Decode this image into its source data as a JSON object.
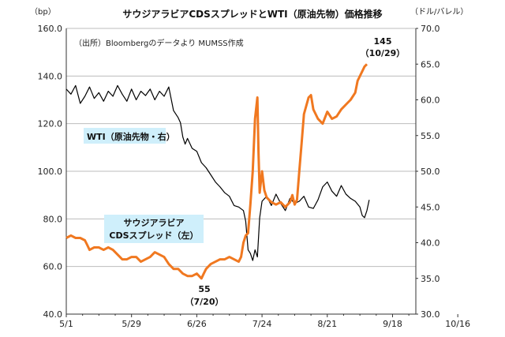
{
  "chart_data": {
    "type": "line",
    "title": "サウジアラビアCDSスプレッドとWTI（原油先物）価格推移",
    "source_note": "（出所）Bloombergのデータより MUMSS作成",
    "y_left_unit": "（bp）",
    "y_right_unit": "（ドル/バレル）",
    "y_left_ticks": [
      "40.0",
      "60.0",
      "80.0",
      "100.0",
      "120.0",
      "140.0",
      "160.0"
    ],
    "y_right_ticks": [
      "30.0",
      "35.0",
      "40.0",
      "45.0",
      "50.0",
      "55.0",
      "60.0",
      "65.0",
      "70.0"
    ],
    "x_ticks": [
      "5/1",
      "5/29",
      "6/26",
      "7/24",
      "8/21",
      "9/18",
      "10/16"
    ],
    "ylim_left": [
      40,
      160
    ],
    "ylim_right": [
      30,
      70
    ],
    "grid": true,
    "series": [
      {
        "name": "WTI（原油先物・右）",
        "axis": "right",
        "color": "#000000",
        "points": [
          [
            0,
            61.5
          ],
          [
            2,
            60.8
          ],
          [
            4,
            62.0
          ],
          [
            6,
            59.5
          ],
          [
            8,
            60.5
          ],
          [
            10,
            61.8
          ],
          [
            12,
            60.2
          ],
          [
            14,
            61.0
          ],
          [
            16,
            59.8
          ],
          [
            18,
            61.2
          ],
          [
            20,
            60.5
          ],
          [
            22,
            62.0
          ],
          [
            24,
            60.8
          ],
          [
            26,
            59.8
          ],
          [
            28,
            61.5
          ],
          [
            30,
            60.0
          ],
          [
            32,
            61.2
          ],
          [
            34,
            60.6
          ],
          [
            36,
            61.5
          ],
          [
            38,
            60.0
          ],
          [
            40,
            61.2
          ],
          [
            42,
            60.5
          ],
          [
            44,
            61.8
          ],
          [
            46,
            58.5
          ],
          [
            48,
            57.5
          ],
          [
            49,
            56.8
          ],
          [
            50,
            54.8
          ],
          [
            51,
            53.8
          ],
          [
            52,
            54.6
          ],
          [
            54,
            53.2
          ],
          [
            56,
            52.8
          ],
          [
            58,
            51.2
          ],
          [
            60,
            50.5
          ],
          [
            62,
            49.5
          ],
          [
            64,
            48.5
          ],
          [
            66,
            47.8
          ],
          [
            68,
            47.0
          ],
          [
            70,
            46.5
          ],
          [
            72,
            45.2
          ],
          [
            74,
            45.0
          ],
          [
            76,
            44.5
          ],
          [
            77,
            43.0
          ],
          [
            78,
            39.0
          ],
          [
            79,
            38.5
          ],
          [
            80,
            37.5
          ],
          [
            81,
            39.0
          ],
          [
            82,
            38.0
          ],
          [
            83,
            43.5
          ],
          [
            84,
            45.8
          ],
          [
            86,
            46.5
          ],
          [
            88,
            45.2
          ],
          [
            90,
            46.8
          ],
          [
            92,
            45.5
          ],
          [
            94,
            44.5
          ],
          [
            96,
            46.2
          ],
          [
            98,
            45.5
          ],
          [
            100,
            45.8
          ],
          [
            102,
            46.5
          ],
          [
            104,
            45.0
          ],
          [
            106,
            44.8
          ],
          [
            108,
            46.0
          ],
          [
            110,
            47.8
          ],
          [
            112,
            48.5
          ],
          [
            114,
            47.2
          ],
          [
            116,
            46.5
          ],
          [
            118,
            48.0
          ],
          [
            120,
            46.8
          ],
          [
            122,
            46.2
          ],
          [
            124,
            45.8
          ],
          [
            126,
            45.0
          ],
          [
            127,
            43.8
          ],
          [
            128,
            43.5
          ],
          [
            129,
            44.5
          ],
          [
            130,
            46.0
          ]
        ]
      },
      {
        "name": "サウジアラビアCDSスプレッド（左）",
        "axis": "left",
        "color": "#F07820",
        "points": [
          [
            0,
            72
          ],
          [
            2,
            73
          ],
          [
            4,
            72
          ],
          [
            6,
            72
          ],
          [
            8,
            71
          ],
          [
            9,
            69
          ],
          [
            10,
            67
          ],
          [
            12,
            68
          ],
          [
            14,
            68
          ],
          [
            16,
            67
          ],
          [
            18,
            68
          ],
          [
            20,
            67
          ],
          [
            22,
            65
          ],
          [
            24,
            63
          ],
          [
            26,
            63
          ],
          [
            28,
            64
          ],
          [
            30,
            64
          ],
          [
            32,
            62
          ],
          [
            34,
            63
          ],
          [
            36,
            64
          ],
          [
            38,
            66
          ],
          [
            40,
            65
          ],
          [
            42,
            64
          ],
          [
            44,
            61
          ],
          [
            46,
            59
          ],
          [
            48,
            59
          ],
          [
            50,
            57
          ],
          [
            52,
            56
          ],
          [
            54,
            56
          ],
          [
            56,
            57
          ],
          [
            58,
            55
          ],
          [
            59,
            57
          ],
          [
            60,
            59
          ],
          [
            62,
            61
          ],
          [
            64,
            62
          ],
          [
            66,
            63
          ],
          [
            68,
            63
          ],
          [
            70,
            64
          ],
          [
            72,
            63
          ],
          [
            74,
            62
          ],
          [
            75,
            64
          ],
          [
            76,
            70
          ],
          [
            77,
            73
          ],
          [
            78,
            74
          ],
          [
            79,
            86
          ],
          [
            80,
            100
          ],
          [
            81,
            122
          ],
          [
            82,
            131
          ],
          [
            82.5,
            108
          ],
          [
            83,
            91
          ],
          [
            84,
            100
          ],
          [
            85,
            92
          ],
          [
            86,
            89
          ],
          [
            88,
            87
          ],
          [
            90,
            86
          ],
          [
            92,
            87
          ],
          [
            94,
            85
          ],
          [
            96,
            87
          ],
          [
            97,
            90
          ],
          [
            98,
            86
          ],
          [
            99,
            88
          ],
          [
            100,
            100
          ],
          [
            101,
            112
          ],
          [
            102,
            124
          ],
          [
            104,
            131
          ],
          [
            105,
            132
          ],
          [
            106,
            126
          ],
          [
            108,
            122
          ],
          [
            110,
            120
          ],
          [
            112,
            125
          ],
          [
            114,
            122
          ],
          [
            116,
            123
          ],
          [
            118,
            126
          ],
          [
            120,
            128
          ],
          [
            122,
            130
          ],
          [
            124,
            133
          ],
          [
            125,
            138
          ],
          [
            127,
            142
          ],
          [
            128,
            144
          ],
          [
            129,
            145
          ]
        ]
      }
    ],
    "annotations": {
      "wti_label": "WTI（原油先物・右）",
      "cds_label_line1": "サウジアラビア",
      "cds_label_line2": "CDSスプレッド（左）",
      "min_value": "55",
      "min_date": "（7/20）",
      "max_value": "145",
      "max_date": "（10/29）"
    }
  }
}
